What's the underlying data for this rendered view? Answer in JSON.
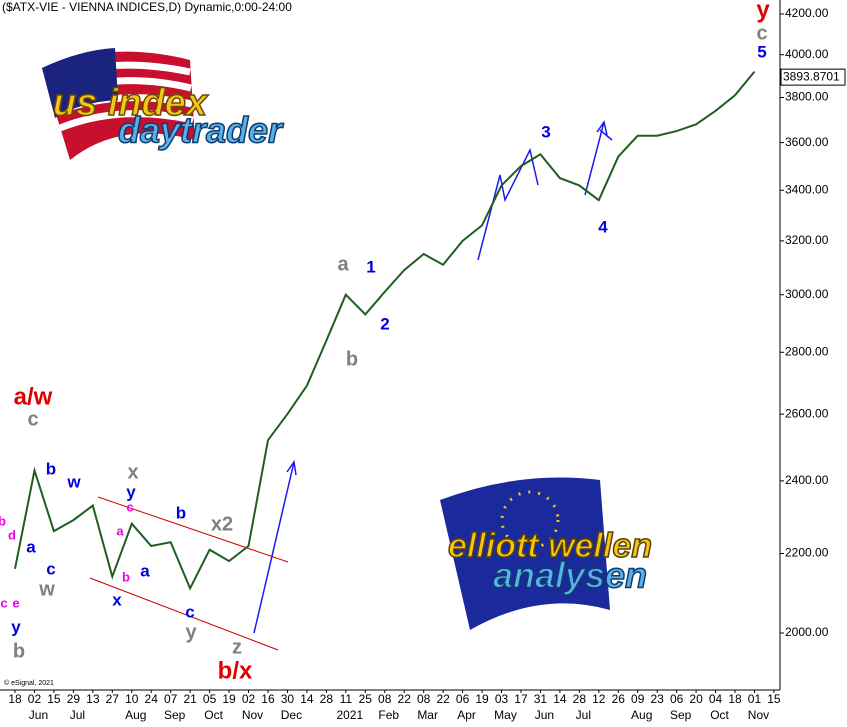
{
  "chart_data": {
    "type": "line",
    "title": "($ATX-VIE - VIENNA INDICES,D) Dynamic,0:00-24:00",
    "credit": "© eSignal, 2021",
    "log_scale": true,
    "color": "#1f5e1f",
    "categories": [
      "18",
      "02",
      "15",
      "29",
      "13",
      "27",
      "10",
      "24",
      "07",
      "21",
      "05",
      "19",
      "02",
      "16",
      "30",
      "14",
      "28",
      "11",
      "25",
      "08",
      "22",
      "08",
      "22",
      "06",
      "19",
      "03",
      "17",
      "31",
      "14",
      "28",
      "12",
      "26",
      "09",
      "23",
      "06",
      "20",
      "04",
      "18",
      "01",
      "15"
    ],
    "months": [
      null,
      "Jun",
      null,
      "Jul",
      null,
      null,
      "Aug",
      null,
      "Sep",
      null,
      "Oct",
      null,
      "Nov",
      null,
      "Dec",
      null,
      null,
      "2021",
      null,
      "Feb",
      null,
      "Mar",
      null,
      "Apr",
      null,
      "May",
      null,
      "Jun",
      null,
      "Jul",
      null,
      null,
      "Aug",
      null,
      "Sep",
      null,
      "Oct",
      null,
      "Nov",
      null
    ],
    "values": [
      2160,
      2430,
      2260,
      2290,
      2330,
      2140,
      2280,
      2220,
      2230,
      2110,
      2210,
      2180,
      2220,
      2520,
      2600,
      2690,
      2840,
      3000,
      2930,
      3010,
      3090,
      3150,
      3110,
      3200,
      3260,
      3420,
      3500,
      3550,
      3450,
      3420,
      3360,
      3540,
      3630,
      3630,
      3650,
      3680,
      3740,
      3810,
      3920,
      null
    ],
    "last_price": 3893.8701,
    "ylim": [
      1868,
      4271
    ],
    "yticks": [
      {
        "value": 2000,
        "label": "2000.00"
      },
      {
        "value": 2200,
        "label": "2200.00"
      },
      {
        "value": 2400,
        "label": "2400.00"
      },
      {
        "value": 2600,
        "label": "2600.00"
      },
      {
        "value": 2800,
        "label": "2800.00"
      },
      {
        "value": 3000,
        "label": "3000.00"
      },
      {
        "value": 3200,
        "label": "3200.00"
      },
      {
        "value": 3400,
        "label": "3400.00"
      },
      {
        "value": 3600,
        "label": "3600.00"
      },
      {
        "value": 3800,
        "label": "3800.00"
      },
      {
        "value": 4000,
        "label": "4000.00"
      },
      {
        "value": 4200,
        "label": "4200.00"
      }
    ],
    "annotations": [
      {
        "text": "a/w",
        "color": "#e00000"
      },
      {
        "text": "c",
        "color": "#808080"
      },
      {
        "text": "b",
        "color": "#0000dd"
      },
      {
        "text": "w",
        "color": "#0000dd"
      },
      {
        "text": "a",
        "color": "#0000dd"
      },
      {
        "text": "c",
        "color": "#0000dd"
      },
      {
        "text": "w",
        "color": "#808080"
      },
      {
        "text": "b",
        "color": "#ee00ee"
      },
      {
        "text": "d",
        "color": "#ee00ee"
      },
      {
        "text": "c",
        "color": "#ee00ee"
      },
      {
        "text": "e",
        "color": "#ee00ee"
      },
      {
        "text": "y",
        "color": "#0000dd"
      },
      {
        "text": "b",
        "color": "#808080"
      },
      {
        "text": "x",
        "color": "#808080"
      },
      {
        "text": "y",
        "color": "#0000dd"
      },
      {
        "text": "c",
        "color": "#ee00ee"
      },
      {
        "text": "a",
        "color": "#ee00ee"
      },
      {
        "text": "b",
        "color": "#ee00ee"
      },
      {
        "text": "a",
        "color": "#0000dd"
      },
      {
        "text": "x",
        "color": "#0000dd"
      },
      {
        "text": "b",
        "color": "#0000dd"
      },
      {
        "text": "c",
        "color": "#0000dd"
      },
      {
        "text": "y",
        "color": "#808080"
      },
      {
        "text": "x2",
        "color": "#808080"
      },
      {
        "text": "z",
        "color": "#808080"
      },
      {
        "text": "b/x",
        "color": "#e00000"
      },
      {
        "text": "a",
        "color": "#808080"
      },
      {
        "text": "1",
        "color": "#0000dd"
      },
      {
        "text": "b",
        "color": "#808080"
      },
      {
        "text": "2",
        "color": "#0000dd"
      },
      {
        "text": "3",
        "color": "#0000dd"
      },
      {
        "text": "4",
        "color": "#0000dd"
      },
      {
        "text": "5",
        "color": "#0000dd"
      },
      {
        "text": "c",
        "color": "#808080"
      },
      {
        "text": "y",
        "color": "#e00000"
      }
    ]
  },
  "logos": {
    "top_line1": "us index",
    "top_line2": "daytrader",
    "bottom_line1": "elliott wellen",
    "bottom_line2": "analysen"
  }
}
